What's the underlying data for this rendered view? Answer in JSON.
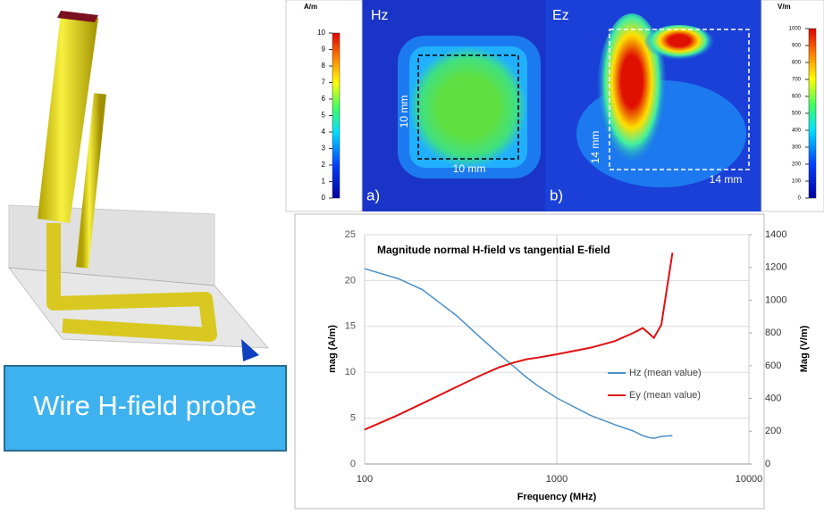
{
  "probe_label": "Wire H-field probe",
  "panels": [
    {
      "title": "Hz",
      "tag": "a)",
      "dim_x": "10 mm",
      "dim_y": "10 mm"
    },
    {
      "title": "Ez",
      "tag": "b)",
      "dim_x": "14 mm",
      "dim_y": "14 mm"
    }
  ],
  "colorbars": [
    {
      "unit": "A/m",
      "lim": [
        0,
        10
      ],
      "ticks": [
        0,
        1,
        2,
        3,
        4,
        5,
        6,
        7,
        8,
        9,
        10
      ]
    },
    {
      "unit": "V/m",
      "lim": [
        0,
        1000
      ],
      "ticks": [
        0,
        100,
        200,
        300,
        400,
        500,
        600,
        700,
        800,
        900,
        1000
      ]
    }
  ],
  "chart_data": {
    "type": "line",
    "title": "Magnitude normal H-field vs tangential E-field",
    "x_label": "Frequency (MHz)",
    "y_label": "mag (A/m)",
    "y2_label": "Mag (V/m)",
    "xscale": "log",
    "xlim": [
      100,
      10000
    ],
    "xticks": [
      100,
      1000,
      10000
    ],
    "ylim": [
      0,
      25
    ],
    "yticks": [
      0,
      5,
      10,
      15,
      20,
      25
    ],
    "y2lim": [
      0,
      1400
    ],
    "y2ticks": [
      0,
      200,
      400,
      600,
      800,
      1000,
      1200,
      1400
    ],
    "grid": true,
    "x": [
      100,
      150,
      200,
      300,
      400,
      500,
      600,
      700,
      800,
      1000,
      1500,
      2000,
      2500,
      2800,
      3000,
      3200,
      3500,
      4000
    ],
    "series": [
      {
        "name": "Hz (mean value)",
        "color": "#4a90c8",
        "values": [
          21.3,
          20.2,
          19,
          16.2,
          13.8,
          12,
          10.6,
          9.4,
          8.5,
          7.2,
          5.3,
          4.3,
          3.6,
          3.1,
          2.9,
          2.8,
          3.0,
          3.1
        ]
      },
      {
        "name": "Ey (mean value)",
        "color": "#e01010",
        "axis": "y2",
        "values": [
          210,
          300,
          370,
          470,
          540,
          590,
          620,
          640,
          650,
          670,
          710,
          750,
          800,
          830,
          800,
          770,
          850,
          1290
        ]
      }
    ]
  }
}
